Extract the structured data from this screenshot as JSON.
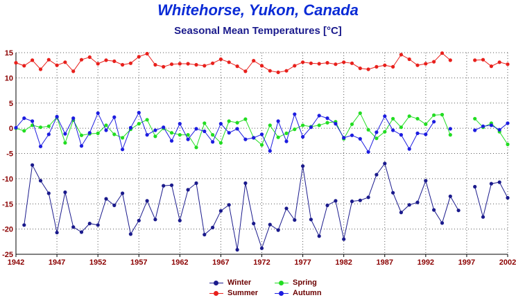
{
  "title": "Whitehorse, Yukon, Canada",
  "subtitle": "Seasonal Mean Temperatures [°C]",
  "colors": {
    "title": "#0a2bd6",
    "subtitle": "#1a1a8c",
    "axis_tick": "#8b0000",
    "grid": "#555555",
    "Winter": "#1a1a8c",
    "Spring": "#22dd22",
    "Summer": "#e8201c",
    "Autumn": "#1c1ce0"
  },
  "chart_data": {
    "type": "line",
    "title": "Whitehorse, Yukon, Canada",
    "subtitle": "Seasonal Mean Temperatures [°C]",
    "xlabel": "",
    "ylabel": "",
    "xlim": [
      1942,
      2002
    ],
    "ylim": [
      -25,
      15
    ],
    "x_ticks": [
      1942,
      1947,
      1952,
      1957,
      1962,
      1967,
      1972,
      1977,
      1982,
      1987,
      1992,
      1997,
      2002
    ],
    "y_ticks": [
      -25,
      -20,
      -15,
      -10,
      -5,
      0,
      5,
      10,
      15
    ],
    "grid": true,
    "legend_position": "bottom-center",
    "x": [
      1942,
      1943,
      1944,
      1945,
      1946,
      1947,
      1948,
      1949,
      1950,
      1951,
      1952,
      1953,
      1954,
      1955,
      1956,
      1957,
      1958,
      1959,
      1960,
      1961,
      1962,
      1963,
      1964,
      1965,
      1966,
      1967,
      1968,
      1969,
      1970,
      1971,
      1972,
      1973,
      1974,
      1975,
      1976,
      1977,
      1978,
      1979,
      1980,
      1981,
      1982,
      1983,
      1984,
      1985,
      1986,
      1987,
      1988,
      1989,
      1990,
      1991,
      1992,
      1993,
      1994,
      1995,
      1996,
      1997,
      1998,
      1999,
      2000,
      2001,
      2002
    ],
    "series": [
      {
        "name": "Winter",
        "values": [
          null,
          -19.2,
          -7.3,
          -10.4,
          -12.9,
          -20.7,
          -12.7,
          -19.6,
          -20.6,
          -18.9,
          -19.2,
          -14.0,
          -15.3,
          -12.9,
          -21.0,
          -18.3,
          -14.4,
          -18.1,
          -11.4,
          -11.3,
          -18.3,
          -12.2,
          -10.9,
          -21.1,
          -19.7,
          -16.4,
          -15.2,
          -24.1,
          -10.9,
          -18.9,
          -23.8,
          -19.1,
          -20.2,
          -15.9,
          -18.2,
          -7.5,
          -18.1,
          -21.4,
          -15.3,
          -14.4,
          -22.0,
          -14.5,
          -14.3,
          -13.7,
          -9.2,
          -7.0,
          -12.8,
          -16.7,
          -15.2,
          -14.7,
          -10.4,
          -16.2,
          -18.8,
          -13.5,
          -16.3,
          null,
          -11.6,
          -17.6,
          -11.0,
          -10.7,
          -13.8
        ]
      },
      {
        "name": "Spring",
        "values": [
          0.0,
          -0.5,
          0.6,
          0.2,
          0.4,
          2.2,
          -2.9,
          1.6,
          -1.4,
          -1.1,
          -1.0,
          0.6,
          -1.2,
          -1.9,
          -0.2,
          0.9,
          1.7,
          -1.6,
          0.0,
          -0.9,
          -1.3,
          -1.3,
          -3.8,
          1.0,
          -1.3,
          -2.9,
          1.4,
          1.1,
          1.8,
          -1.9,
          -3.3,
          0.6,
          -1.8,
          -1.0,
          -0.2,
          0.6,
          0.3,
          0.6,
          1.1,
          1.3,
          -2.1,
          0.8,
          3.0,
          -0.3,
          -2.0,
          -0.7,
          1.9,
          0.2,
          2.4,
          1.9,
          0.8,
          2.6,
          2.7,
          -1.3,
          null,
          null,
          1.9,
          0.2,
          1.0,
          -0.7,
          -3.2
        ]
      },
      {
        "name": "Summer",
        "values": [
          13.0,
          12.4,
          13.5,
          11.7,
          13.6,
          12.5,
          13.1,
          11.3,
          13.6,
          14.1,
          12.8,
          13.5,
          13.3,
          12.6,
          12.9,
          14.2,
          14.8,
          12.6,
          12.2,
          12.7,
          12.8,
          12.8,
          12.6,
          12.4,
          12.9,
          13.7,
          13.1,
          12.3,
          11.3,
          13.4,
          12.4,
          11.4,
          11.1,
          11.4,
          12.4,
          13.1,
          12.9,
          12.8,
          13.0,
          12.7,
          13.1,
          12.9,
          11.9,
          11.7,
          12.2,
          12.5,
          12.2,
          14.6,
          13.7,
          12.5,
          12.8,
          13.2,
          14.9,
          13.5,
          null,
          null,
          13.5,
          13.6,
          12.3,
          13.1,
          12.7
        ]
      },
      {
        "name": "Autumn",
        "values": [
          0.1,
          2.0,
          1.4,
          -3.6,
          -1.2,
          2.3,
          -1.1,
          2.0,
          -3.5,
          -0.9,
          3.0,
          -0.4,
          2.2,
          -4.2,
          0.1,
          3.1,
          -1.3,
          -0.4,
          0.2,
          -2.5,
          0.9,
          -2.2,
          -0.1,
          -0.6,
          -2.7,
          0.9,
          -0.9,
          -0.1,
          -2.2,
          -1.9,
          -1.2,
          -4.5,
          1.4,
          -2.6,
          2.8,
          -1.7,
          0.2,
          2.5,
          2.0,
          0.9,
          -1.9,
          -1.4,
          -2.1,
          -4.7,
          -0.8,
          2.4,
          -0.4,
          -1.3,
          -4.1,
          -1.0,
          -1.2,
          1.3,
          null,
          -0.1,
          null,
          null,
          -0.4,
          0.4,
          0.6,
          -0.3,
          1.0
        ]
      }
    ]
  }
}
